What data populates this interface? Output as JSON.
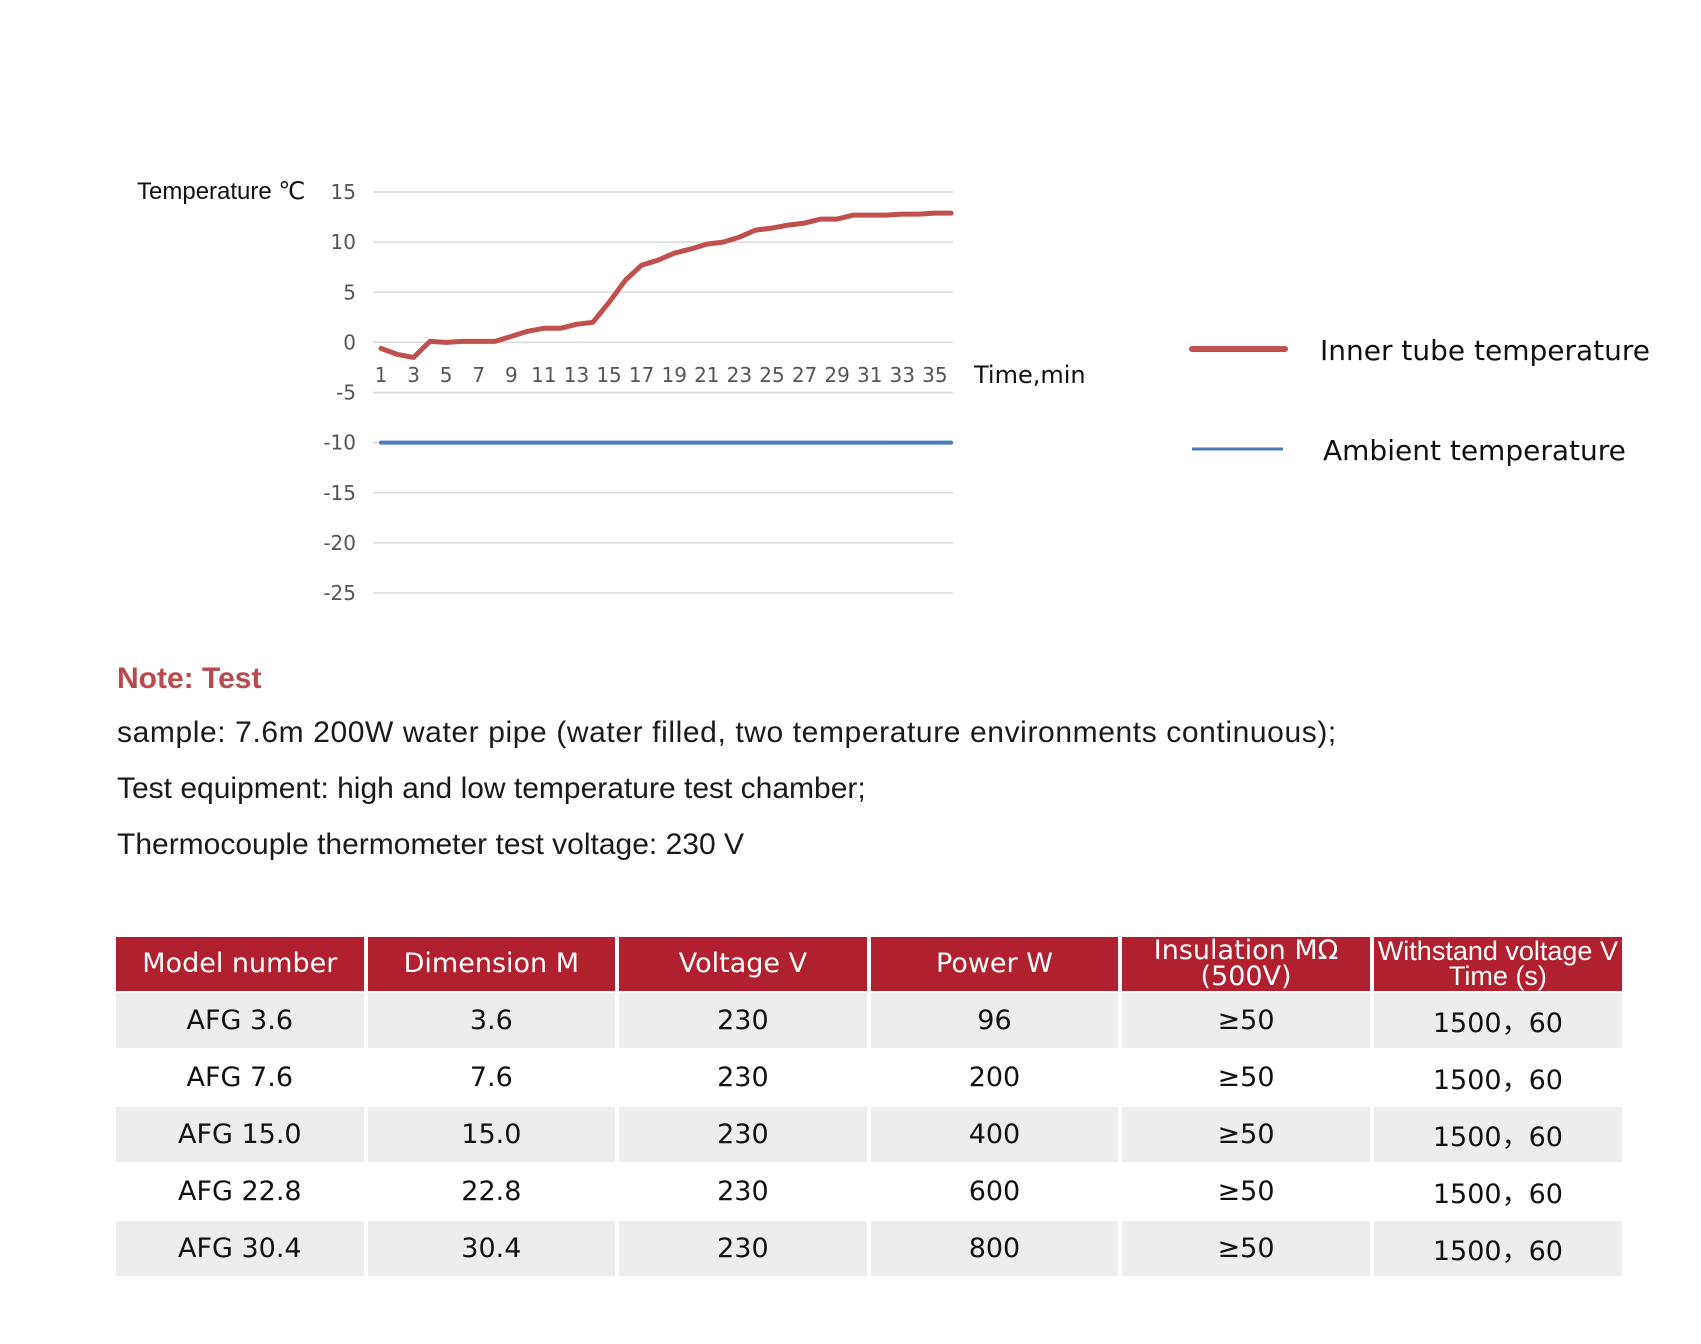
{
  "chart_data": {
    "type": "line",
    "ylabel": "Temperature ℃",
    "xlabel": "Time,min",
    "ylim": [
      -25,
      15
    ],
    "yticks": [
      15,
      10,
      5,
      0,
      -5,
      -10,
      -15,
      -20,
      -25
    ],
    "x": [
      1,
      2,
      3,
      4,
      5,
      6,
      7,
      8,
      9,
      10,
      11,
      12,
      13,
      14,
      15,
      16,
      17,
      18,
      19,
      20,
      21,
      22,
      23,
      24,
      25,
      26,
      27,
      28,
      29,
      30,
      31,
      32,
      33,
      34,
      35,
      36
    ],
    "xtick_labels": [
      "1",
      "3",
      "5",
      "7",
      "9",
      "11",
      "13",
      "15",
      "17",
      "19",
      "21",
      "23",
      "25",
      "27",
      "29",
      "31",
      "33",
      "35"
    ],
    "grid": true,
    "legend_position": "right",
    "series": [
      {
        "name": "Inner tube temperature",
        "color": "#c0504d",
        "values": [
          -0.6,
          -1.2,
          -1.5,
          0.1,
          0.0,
          0.1,
          0.1,
          0.1,
          0.6,
          1.1,
          1.4,
          1.4,
          1.8,
          2.0,
          4.0,
          6.2,
          7.7,
          8.2,
          8.9,
          9.3,
          9.8,
          10.0,
          10.5,
          11.2,
          11.4,
          11.7,
          11.9,
          12.3,
          12.3,
          12.7,
          12.7,
          12.7,
          12.8,
          12.8,
          12.9,
          12.9
        ]
      },
      {
        "name": "Ambient temperature",
        "color": "#4f7bbd",
        "values": [
          -10,
          -10,
          -10,
          -10,
          -10,
          -10,
          -10,
          -10,
          -10,
          -10,
          -10,
          -10,
          -10,
          -10,
          -10,
          -10,
          -10,
          -10,
          -10,
          -10,
          -10,
          -10,
          -10,
          -10,
          -10,
          -10,
          -10,
          -10,
          -10,
          -10,
          -10,
          -10,
          -10,
          -10,
          -10,
          -10
        ]
      }
    ]
  },
  "note": {
    "title": "Note: Test",
    "line1": "sample: 7.6m 200W water pipe (water filled, two temperature environments continuous);",
    "line2": "Test equipment: high and low temperature test chamber;",
    "line3": "Thermocouple thermometer test voltage: 230 V"
  },
  "table": {
    "header_color": "#b0202f",
    "headers": {
      "model": "Model number",
      "dimension": "Dimension M",
      "voltage": "Voltage V",
      "power": "Power W",
      "insulation_1": "Insulation MΩ",
      "insulation_2": "(500V)",
      "withstand_1": "Withstand voltage V",
      "withstand_2": "Time (s)"
    },
    "rows": [
      {
        "model": "AFG 3.6",
        "dimension": "3.6",
        "voltage": "230",
        "power": "96",
        "insulation": "≥50",
        "withstand": "1500，60"
      },
      {
        "model": "AFG 7.6",
        "dimension": "7.6",
        "voltage": "230",
        "power": "200",
        "insulation": "≥50",
        "withstand": "1500，60"
      },
      {
        "model": "AFG 15.0",
        "dimension": "15.0",
        "voltage": "230",
        "power": "400",
        "insulation": "≥50",
        "withstand": "1500，60"
      },
      {
        "model": "AFG 22.8",
        "dimension": "22.8",
        "voltage": "230",
        "power": "600",
        "insulation": "≥50",
        "withstand": "1500，60"
      },
      {
        "model": "AFG 30.4",
        "dimension": "30.4",
        "voltage": "230",
        "power": "800",
        "insulation": "≥50",
        "withstand": "1500，60"
      }
    ]
  }
}
